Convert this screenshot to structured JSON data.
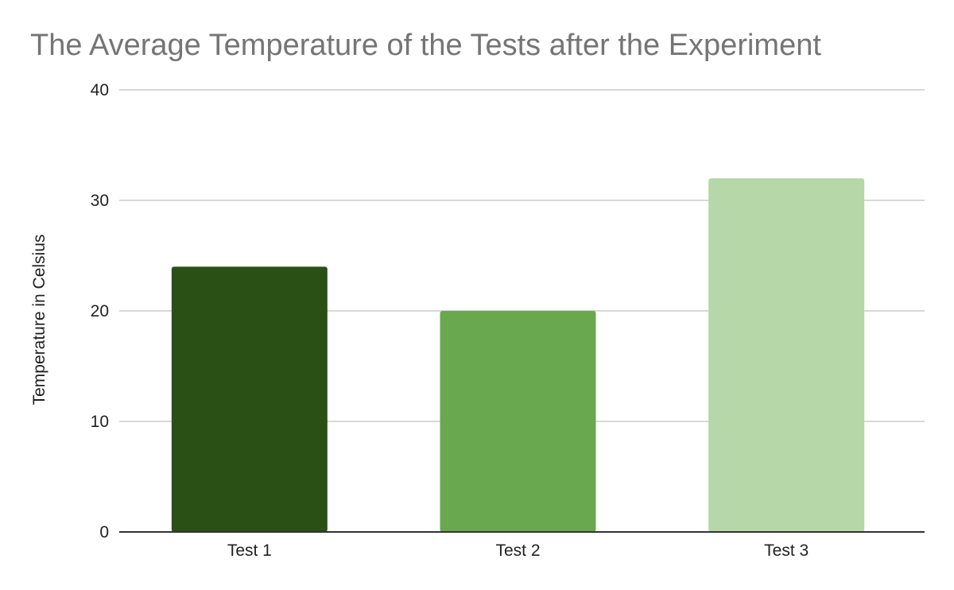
{
  "chart_data": {
    "type": "bar",
    "title": "The Average Temperature of the Tests after the Experiment",
    "xlabel": "",
    "ylabel": "Temperature in Celsius",
    "categories": [
      "Test 1",
      "Test 2",
      "Test 3"
    ],
    "values": [
      24,
      20,
      32
    ],
    "bar_colors": [
      "#2a5016",
      "#6aa84f",
      "#b6d7a8"
    ],
    "ylim": [
      0,
      40
    ],
    "yticks": [
      "0",
      "10",
      "20",
      "30",
      "40"
    ],
    "grid": true,
    "legend": "none"
  }
}
